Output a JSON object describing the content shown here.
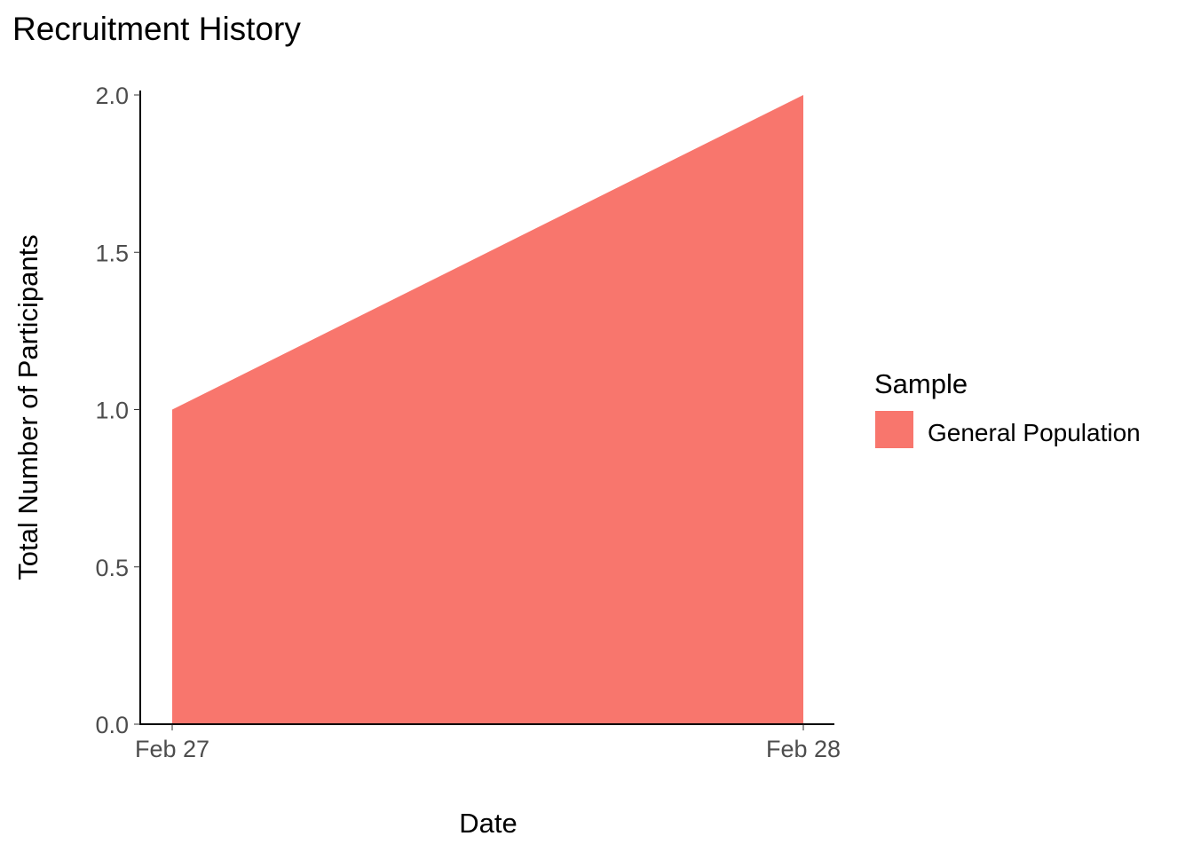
{
  "chart_data": {
    "type": "area",
    "title": "Recruitment History",
    "xlabel": "Date",
    "ylabel": "Total Number of Participants",
    "x": [
      "Feb 27",
      "Feb 28"
    ],
    "x_tick_labels": [
      "Feb 27",
      "Feb 28"
    ],
    "y_ticks": [
      0.0,
      0.5,
      1.0,
      1.5,
      2.0
    ],
    "y_tick_labels": [
      "0.0",
      "0.5",
      "1.0",
      "1.5",
      "2.0"
    ],
    "ylim": [
      0,
      2
    ],
    "grid": false,
    "legend": {
      "title": "Sample",
      "placement": "right",
      "entries": [
        "General Population"
      ]
    },
    "series": [
      {
        "name": "General Population",
        "values": [
          1,
          2
        ],
        "color": "#F8766D"
      }
    ]
  }
}
